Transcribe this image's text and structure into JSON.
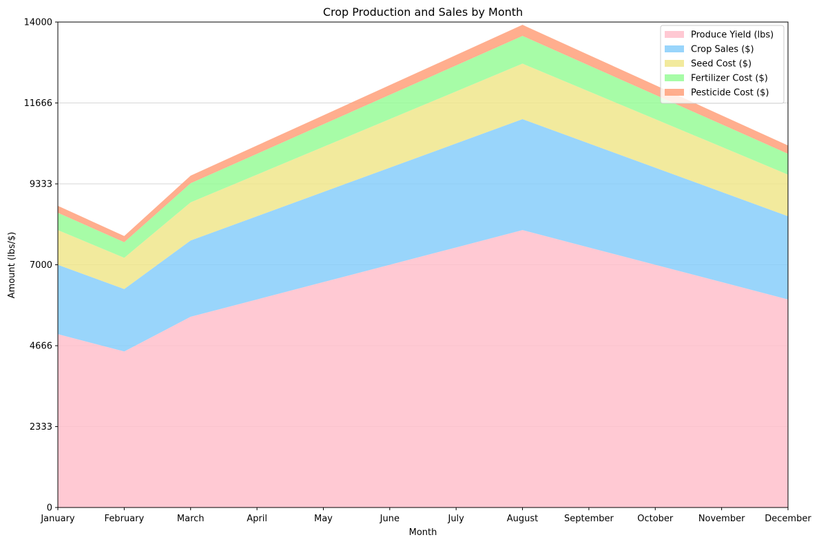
{
  "chart_data": {
    "type": "area",
    "stacked": true,
    "title": "Crop Production and Sales by Month",
    "xlabel": "Month",
    "ylabel": "Amount (lbs/$)",
    "categories": [
      "January",
      "February",
      "March",
      "April",
      "May",
      "June",
      "July",
      "August",
      "September",
      "October",
      "November",
      "December"
    ],
    "ylim": [
      0,
      14000
    ],
    "yticks": [
      "0",
      "2333",
      "4666",
      "7000",
      "9333",
      "11666",
      "14000"
    ],
    "grid": "horizontal",
    "legend_position": "top-right",
    "series": [
      {
        "name": "Produce Yield (lbs)",
        "color": "#ffc0cb",
        "values": [
          5000,
          4500,
          5500,
          6000,
          6500,
          7000,
          7500,
          8000,
          7500,
          7000,
          6500,
          6000
        ]
      },
      {
        "name": "Crop Sales ($)",
        "color": "#87cefa",
        "values": [
          2000,
          1800,
          2200,
          2400,
          2600,
          2800,
          3000,
          3200,
          3000,
          2800,
          2600,
          2400
        ]
      },
      {
        "name": "Seed Cost ($)",
        "color": "#f0e68c",
        "values": [
          1000,
          900,
          1100,
          1200,
          1300,
          1400,
          1500,
          1600,
          1500,
          1400,
          1300,
          1200
        ]
      },
      {
        "name": "Fertilizer Cost ($)",
        "color": "#98fb98",
        "values": [
          500,
          450,
          550,
          600,
          650,
          700,
          750,
          800,
          750,
          700,
          650,
          600
        ]
      },
      {
        "name": "Pesticide Cost ($)",
        "color": "#ffa07a",
        "values": [
          200,
          180,
          220,
          240,
          260,
          280,
          300,
          320,
          300,
          280,
          260,
          240
        ]
      }
    ]
  }
}
